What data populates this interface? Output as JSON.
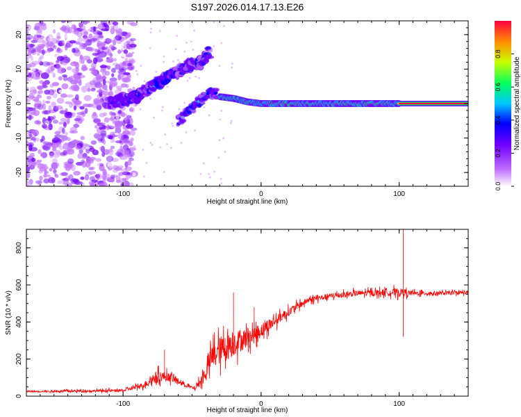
{
  "title": "S197.2026.014.17.13.E26",
  "chart_data": [
    {
      "type": "heatmap",
      "name": "spectrogram",
      "xlabel": "Height of straight line (km)",
      "ylabel": "Frequency (Hz)",
      "xlim": [
        -170,
        150
      ],
      "ylim": [
        -24,
        24
      ],
      "xticks": [
        -100,
        0,
        100
      ],
      "xtick_labels": [
        "-100",
        "0",
        "100"
      ],
      "yticks": [
        -20,
        -10,
        0,
        10,
        20
      ],
      "ytick_labels": [
        "-20",
        "-10",
        "0",
        "10",
        "20"
      ],
      "colorbar": {
        "label": "Normalized spectral amplitude",
        "range": [
          0,
          1
        ],
        "ticks": [
          0,
          0.2,
          0.4,
          0.6,
          0.8
        ],
        "tick_labels": [
          "0.0",
          "0.2",
          "0.4",
          "0.6",
          "0.8"
        ],
        "colors": [
          "#ffffff",
          "#c070ff",
          "#7000ff",
          "#0000ff",
          "#00c8ff",
          "#00ff60",
          "#c8ff00",
          "#ff9000",
          "#ff0040"
        ]
      },
      "features": {
        "noise_region_x": [
          -170,
          -100
        ],
        "upper_branch": [
          [
            -110,
            0
          ],
          [
            -90,
            2
          ],
          [
            -75,
            6
          ],
          [
            -62,
            9
          ],
          [
            -52,
            11
          ],
          [
            -44,
            12
          ],
          [
            -37,
            15
          ]
        ],
        "lower_branch": [
          [
            -60,
            -5
          ],
          [
            -52,
            -2
          ],
          [
            -44,
            1
          ],
          [
            -38,
            3
          ],
          [
            -32,
            3
          ]
        ],
        "carrier": [
          [
            -30,
            2
          ],
          [
            -20,
            1.5
          ],
          [
            -10,
            0.5
          ],
          [
            0,
            0
          ],
          [
            40,
            0
          ],
          [
            100,
            0
          ],
          [
            150,
            0
          ]
        ]
      }
    },
    {
      "type": "line",
      "name": "snr",
      "xlabel": "Height of straight line (km)",
      "ylabel": "SNR (10 * v/v)",
      "xlim": [
        -170,
        150
      ],
      "ylim": [
        0,
        900
      ],
      "xticks": [
        -100,
        0,
        100
      ],
      "xtick_labels": [
        "-100",
        "0",
        "100"
      ],
      "yticks": [
        0,
        200,
        400,
        600,
        800
      ],
      "ytick_labels": [
        "0",
        "200",
        "400",
        "600",
        "800"
      ],
      "color": "#ff0000",
      "envelope": {
        "x": [
          -170,
          -100,
          -85,
          -75,
          -65,
          -55,
          -48,
          -42,
          -35,
          -25,
          -15,
          -5,
          5,
          15,
          25,
          35,
          50,
          70,
          90,
          100,
          110,
          130,
          150
        ],
        "mean": [
          25,
          30,
          60,
          110,
          100,
          60,
          40,
          100,
          220,
          270,
          300,
          330,
          380,
          430,
          480,
          520,
          540,
          555,
          560,
          560,
          555,
          555,
          560
        ],
        "amp": [
          8,
          15,
          30,
          60,
          45,
          20,
          15,
          70,
          140,
          160,
          120,
          90,
          70,
          50,
          40,
          30,
          30,
          30,
          35,
          45,
          25,
          20,
          20
        ]
      },
      "spikes": [
        [
          -70,
          250
        ],
        [
          -20,
          560
        ],
        [
          -5,
          480
        ],
        [
          103,
          900
        ],
        [
          103,
          320
        ]
      ]
    }
  ]
}
